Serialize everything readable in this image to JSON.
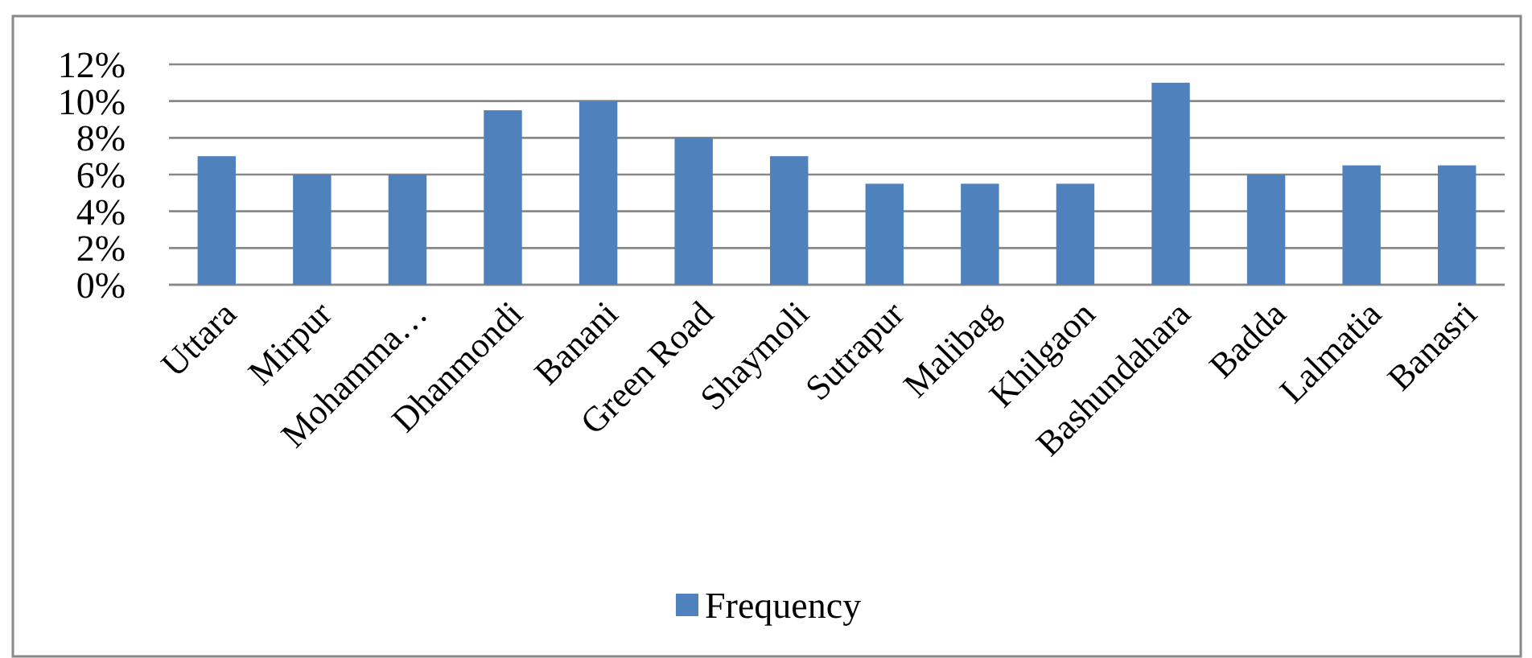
{
  "chart_data": {
    "type": "bar",
    "categories": [
      "Uttara",
      "Mirpur",
      "Mohamma…",
      "Dhanmondi",
      "Banani",
      "Green Road",
      "Shaymoli",
      "Sutrapur",
      "Malibag",
      "Khilgaon",
      "Bashundahara",
      "Badda",
      "Lalmatia",
      "Banasri"
    ],
    "series": [
      {
        "name": "Frequency",
        "color": "#4f81bd",
        "values": [
          7,
          6,
          6,
          9.5,
          10,
          8,
          7,
          5.5,
          5.5,
          5.5,
          11,
          6,
          6.5,
          6.5
        ]
      }
    ],
    "ylim": [
      0,
      12
    ],
    "yticks": [
      {
        "value": 0,
        "label": "0%"
      },
      {
        "value": 2,
        "label": "2%"
      },
      {
        "value": 4,
        "label": "4%"
      },
      {
        "value": 6,
        "label": "6%"
      },
      {
        "value": 8,
        "label": "8%"
      },
      {
        "value": 10,
        "label": "10%"
      },
      {
        "value": 12,
        "label": "12%"
      }
    ],
    "grid": "y",
    "legend": "bottom"
  }
}
